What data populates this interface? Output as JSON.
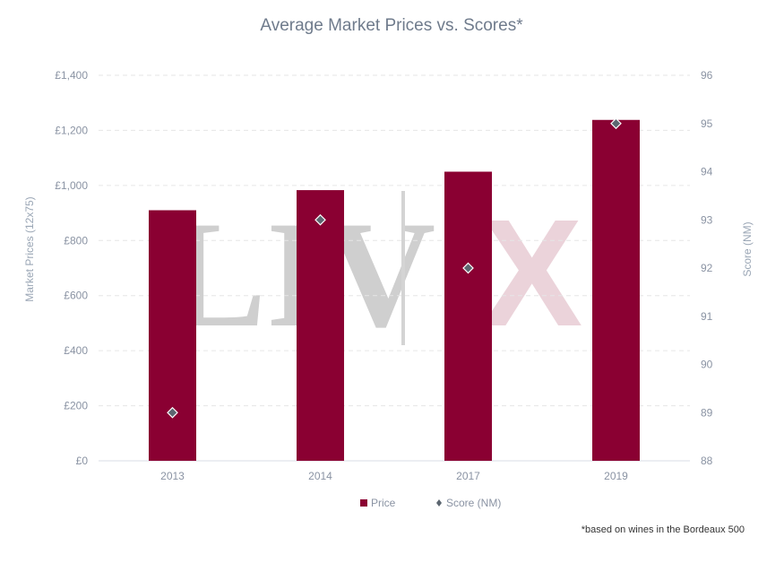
{
  "chart_data": {
    "type": "bar",
    "title": "Average Market Prices vs. Scores*",
    "categories": [
      "2013",
      "2014",
      "2017",
      "2019"
    ],
    "series": [
      {
        "name": "Price",
        "type": "bar",
        "axis": "left",
        "values": [
          910,
          983,
          1050,
          1238
        ],
        "color": "#8a0032"
      },
      {
        "name": "Score (NM)",
        "type": "scatter",
        "axis": "right",
        "values": [
          89,
          93,
          92,
          95
        ],
        "color": "#5c6670"
      }
    ],
    "y_left": {
      "label": "Market Prices (12x75)",
      "ylim": [
        0,
        1400
      ],
      "ticks": [
        "£0",
        "£200",
        "£400",
        "£600",
        "£800",
        "£1,000",
        "£1,200",
        "£1,400"
      ]
    },
    "y_right": {
      "label": "Score (NM)",
      "ylim": [
        88,
        96
      ],
      "ticks": [
        "88",
        "89",
        "90",
        "91",
        "92",
        "93",
        "94",
        "95",
        "96"
      ]
    },
    "grid": true,
    "legend_position": "bottom-center",
    "footnote": "*based on wines in the Bordeaux 500",
    "watermark": {
      "text_left": "LIV",
      "text_right": "IX",
      "colors": [
        "#c8c8c8",
        "#e7cdd5"
      ]
    }
  }
}
